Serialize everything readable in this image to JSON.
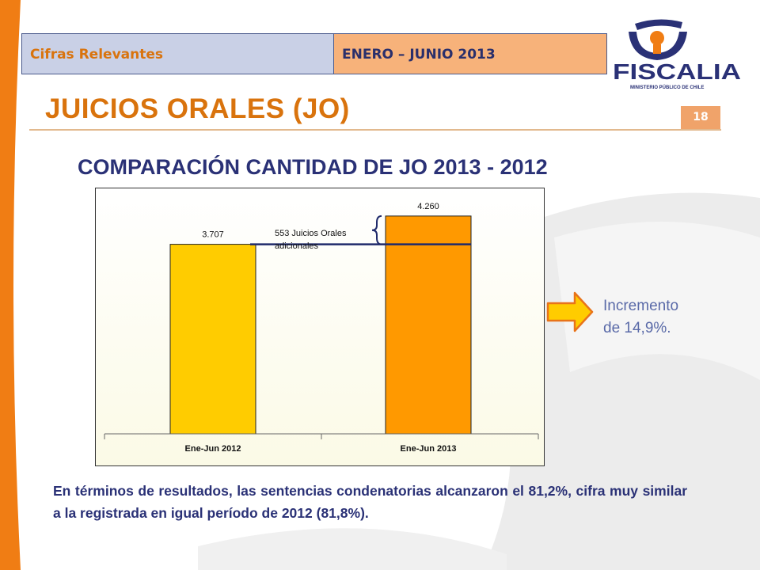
{
  "header": {
    "section_label": "Cifras Relevantes",
    "period_label": "ENERO – JUNIO 2013"
  },
  "logo": {
    "text": "FISCALIA",
    "subtext": "MINISTERIO PÚBLICO DE CHILE"
  },
  "page": {
    "title": "JUICIOS ORALES (JO)",
    "number": "18",
    "subtitle": "COMPARACIÓN CANTIDAD DE JO 2013 - 2012"
  },
  "colors": {
    "accent_orange": "#d9730d",
    "navy": "#2a3176",
    "bar_2012": "#ffcc00",
    "bar_2013": "#ff9900"
  },
  "chart_data": {
    "type": "bar",
    "categories": [
      "Ene-Jun 2012",
      "Ene-Jun 2013"
    ],
    "values": [
      3707,
      4260
    ],
    "data_labels": [
      "3.707",
      "4.260"
    ],
    "ylim": [
      0,
      4800
    ],
    "grid": false,
    "annotation": {
      "line1": "553 Juicios Orales",
      "line2": "adicionales",
      "difference": 553
    }
  },
  "side_note": {
    "line1": "Incremento",
    "line2": "de 14,9%."
  },
  "conclusion": "En términos de resultados, las sentencias condenatorias alcanzaron el 81,2%, cifra muy similar a la registrada en igual período de 2012 (81,8%)."
}
